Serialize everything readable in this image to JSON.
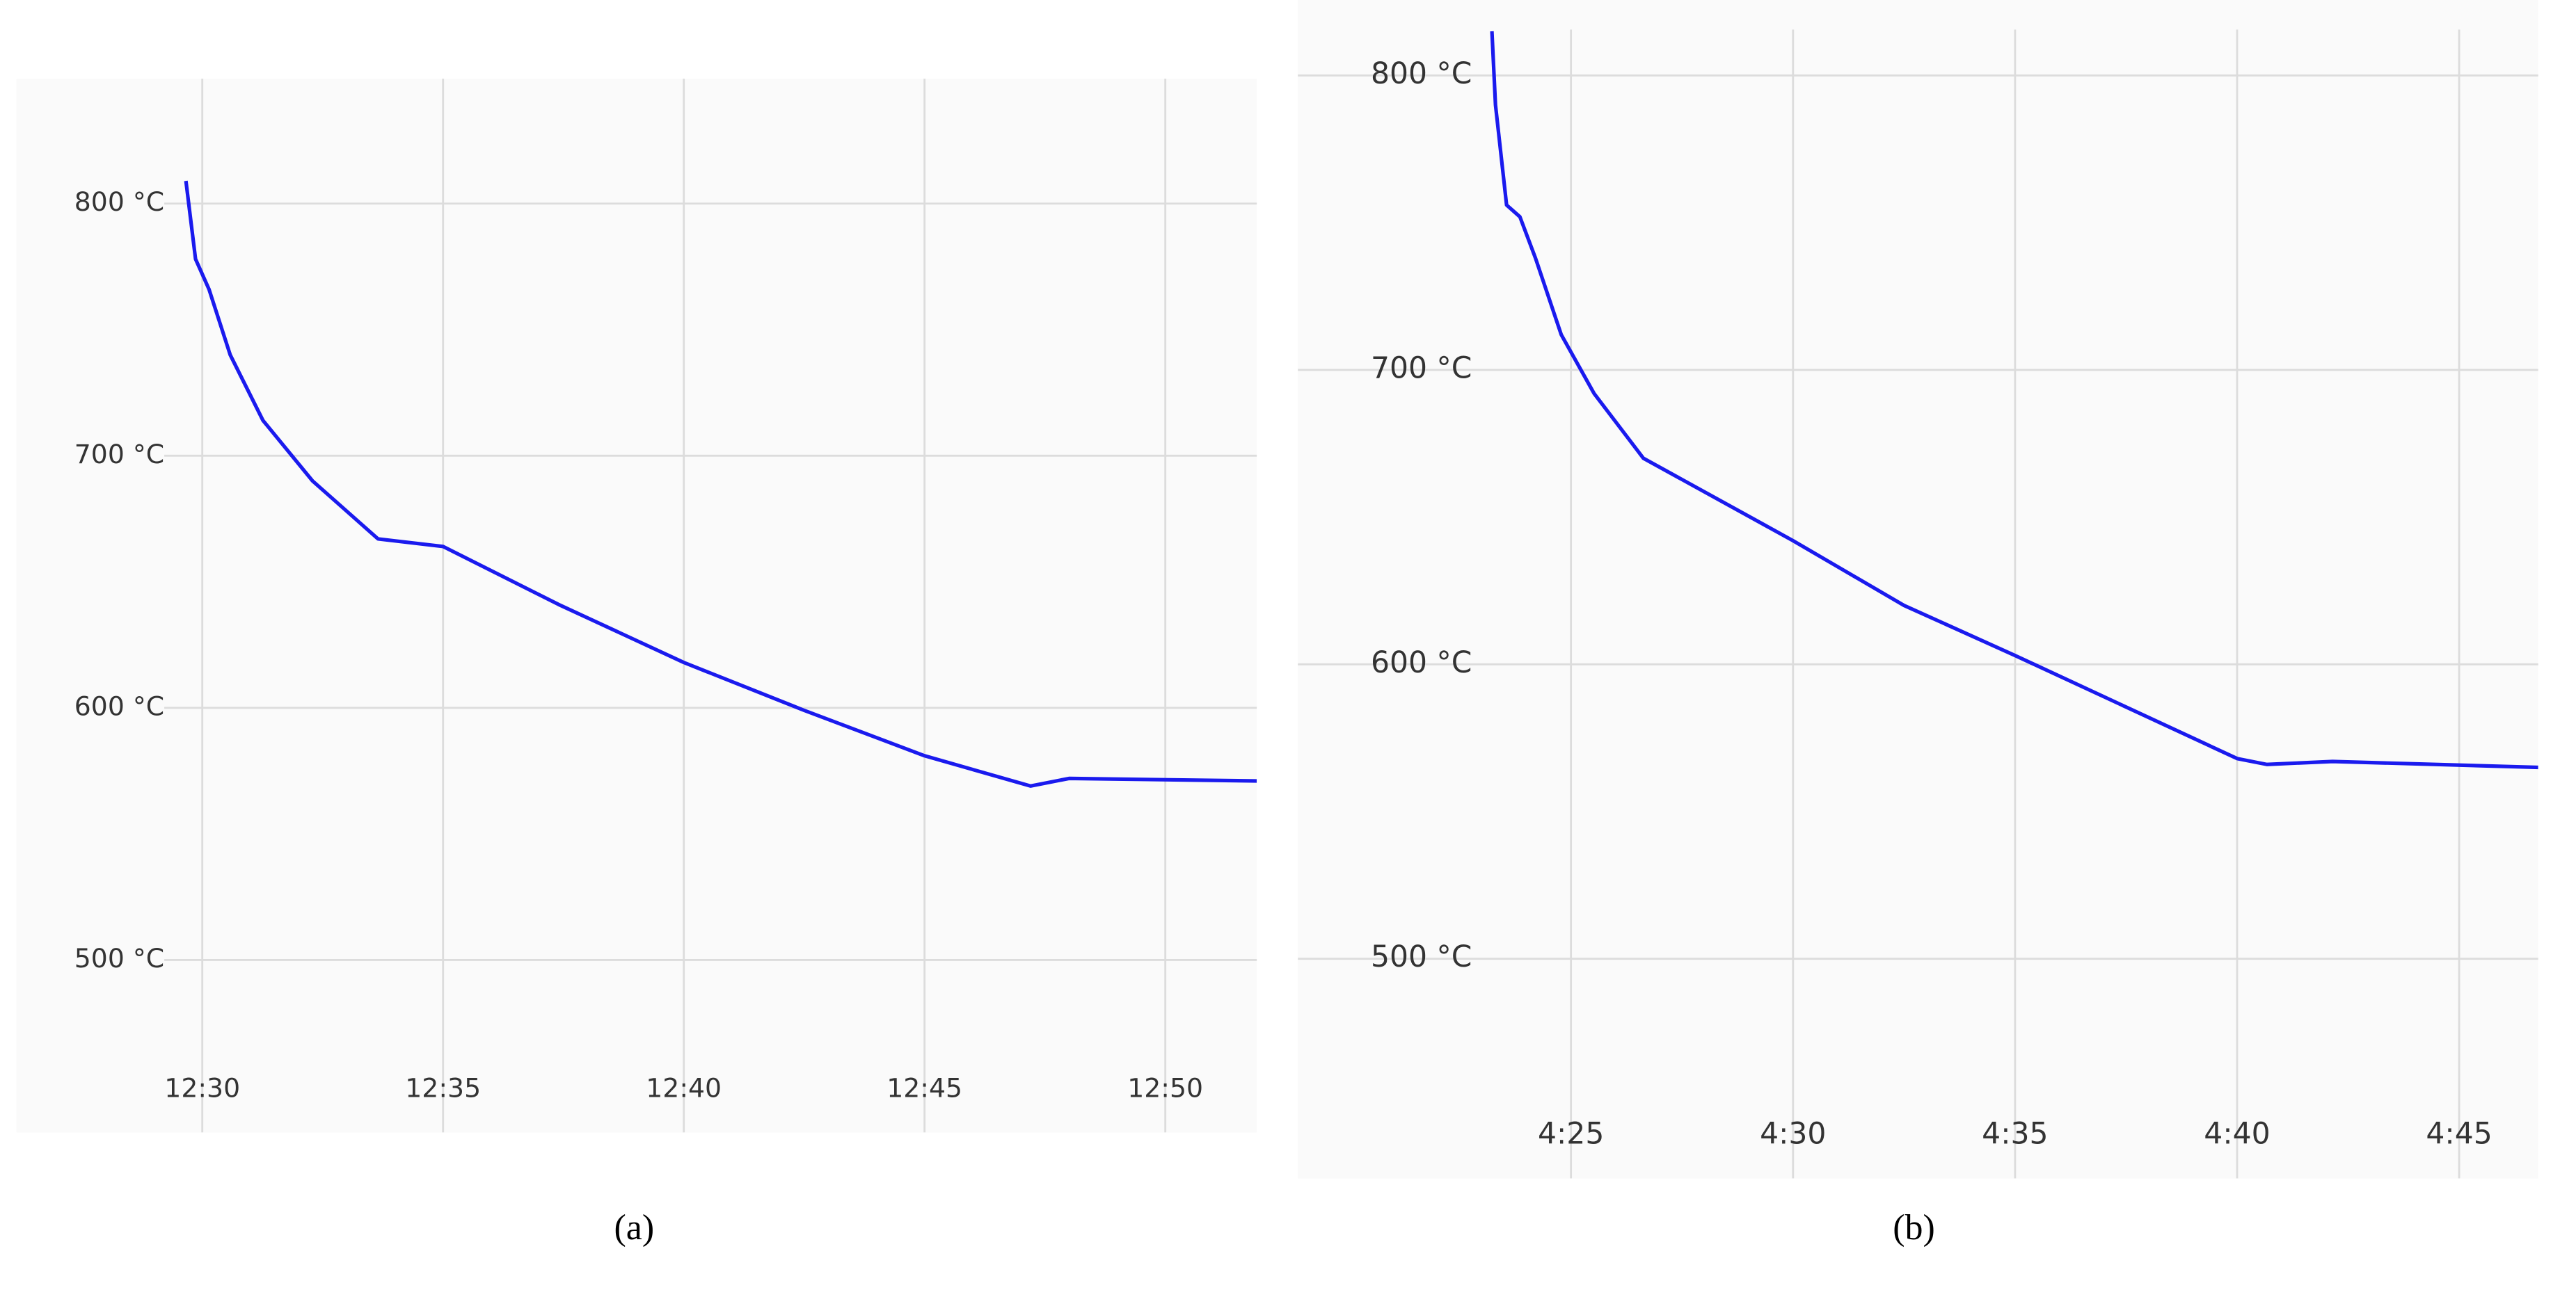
{
  "chart_data": [
    {
      "type": "line",
      "caption": "(a)",
      "x": [
        29.66,
        29.86,
        30.14,
        30.58,
        31.26,
        32.29,
        33.65,
        35,
        37.4,
        40,
        42.5,
        45,
        47.2,
        48,
        51.9
      ],
      "series": [
        {
          "color": "#1a1aee",
          "values": [
            809,
            778,
            766,
            740,
            714,
            690,
            667,
            664,
            641,
            618,
            599,
            581,
            569,
            572,
            571
          ]
        }
      ],
      "xlim": [
        26.14,
        51.9
      ],
      "ylim": [
        431.6,
        849.5
      ],
      "xticks": [
        {
          "value": 30,
          "label": "12:30"
        },
        {
          "value": 35,
          "label": "12:35"
        },
        {
          "value": 40,
          "label": "12:40"
        },
        {
          "value": 45,
          "label": "12:45"
        },
        {
          "value": 50,
          "label": "12:50"
        }
      ],
      "yticks": [
        {
          "value": 500,
          "label": "500 °C"
        },
        {
          "value": 600,
          "label": "600 °C"
        },
        {
          "value": 700,
          "label": "700 °C"
        },
        {
          "value": 800,
          "label": "800 °C"
        }
      ],
      "grid": true
    },
    {
      "type": "line",
      "caption": "(b)",
      "x": [
        23.22,
        23.3,
        23.55,
        23.85,
        24.2,
        24.78,
        25.52,
        26.63,
        30,
        32.5,
        35,
        40,
        40.67,
        42.15,
        46.78
      ],
      "series": [
        {
          "color": "#1a1aee",
          "values": [
            815,
            790,
            756,
            752,
            738,
            712,
            692,
            670,
            642,
            620,
            603,
            568,
            566,
            567,
            565
          ]
        }
      ],
      "xlim": [
        18.85,
        46.78
      ],
      "ylim": [
        425.4,
        815.6
      ],
      "xticks": [
        {
          "value": 25,
          "label": "4:25"
        },
        {
          "value": 30,
          "label": "4:30"
        },
        {
          "value": 35,
          "label": "4:35"
        },
        {
          "value": 40,
          "label": "4:40"
        },
        {
          "value": 45,
          "label": "4:45"
        }
      ],
      "yticks": [
        {
          "value": 500,
          "label": "500 °C"
        },
        {
          "value": 600,
          "label": "600 °C"
        },
        {
          "value": 700,
          "label": "700 °C"
        },
        {
          "value": 800,
          "label": "800 °C"
        }
      ],
      "grid": true
    }
  ]
}
